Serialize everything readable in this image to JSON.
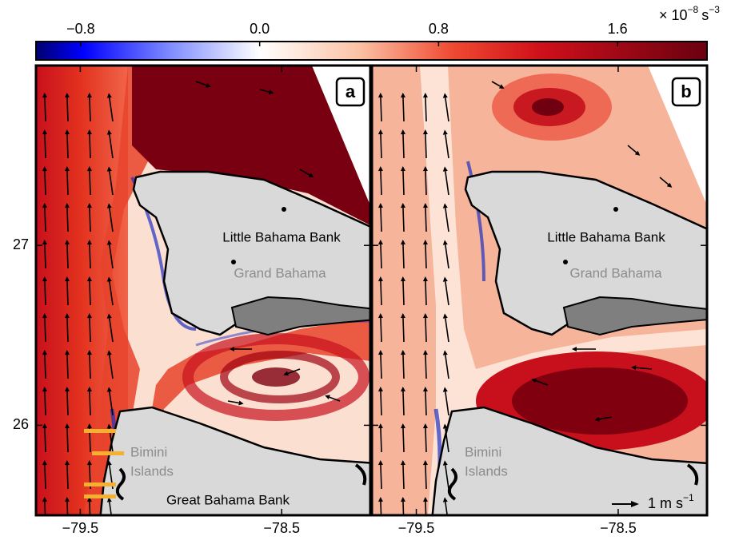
{
  "colorbar": {
    "lim": [
      -1,
      2
    ],
    "ticks": [
      {
        "value": -0.8,
        "label": "−0.8"
      },
      {
        "value": 0,
        "label": "0.0"
      },
      0.8,
      1.6
    ],
    "unit": {
      "prefix": "× 10",
      "exponent": "−8",
      "unit": "s",
      "unit_exponent": "−3"
    }
  },
  "axes": {
    "xlim": [
      -79.72,
      -78.06
    ],
    "ylim": [
      25.5,
      28.0
    ],
    "xticks": [
      {
        "value": -79.5,
        "label": "−79.5"
      },
      {
        "value": -78.5,
        "label": "−78.5"
      }
    ],
    "yticks": [
      27,
      26
    ]
  },
  "panels": [
    {
      "label": "a",
      "places": {
        "little_bahama_bank": "Little Bahama Bank",
        "grand_bahama": "Grand Bahama",
        "bimini_1": "Bimini",
        "bimini_2": "Islands",
        "great_bahama_bank": "Great Bahama Bank"
      }
    },
    {
      "label": "b",
      "places": {
        "little_bahama_bank": "Little Bahama Bank",
        "grand_bahama": "Grand Bahama",
        "bimini_1": "Bimini",
        "bimini_2": "Islands"
      },
      "scale": {
        "text": "1 m s",
        "exponent": "−1"
      }
    }
  ]
}
